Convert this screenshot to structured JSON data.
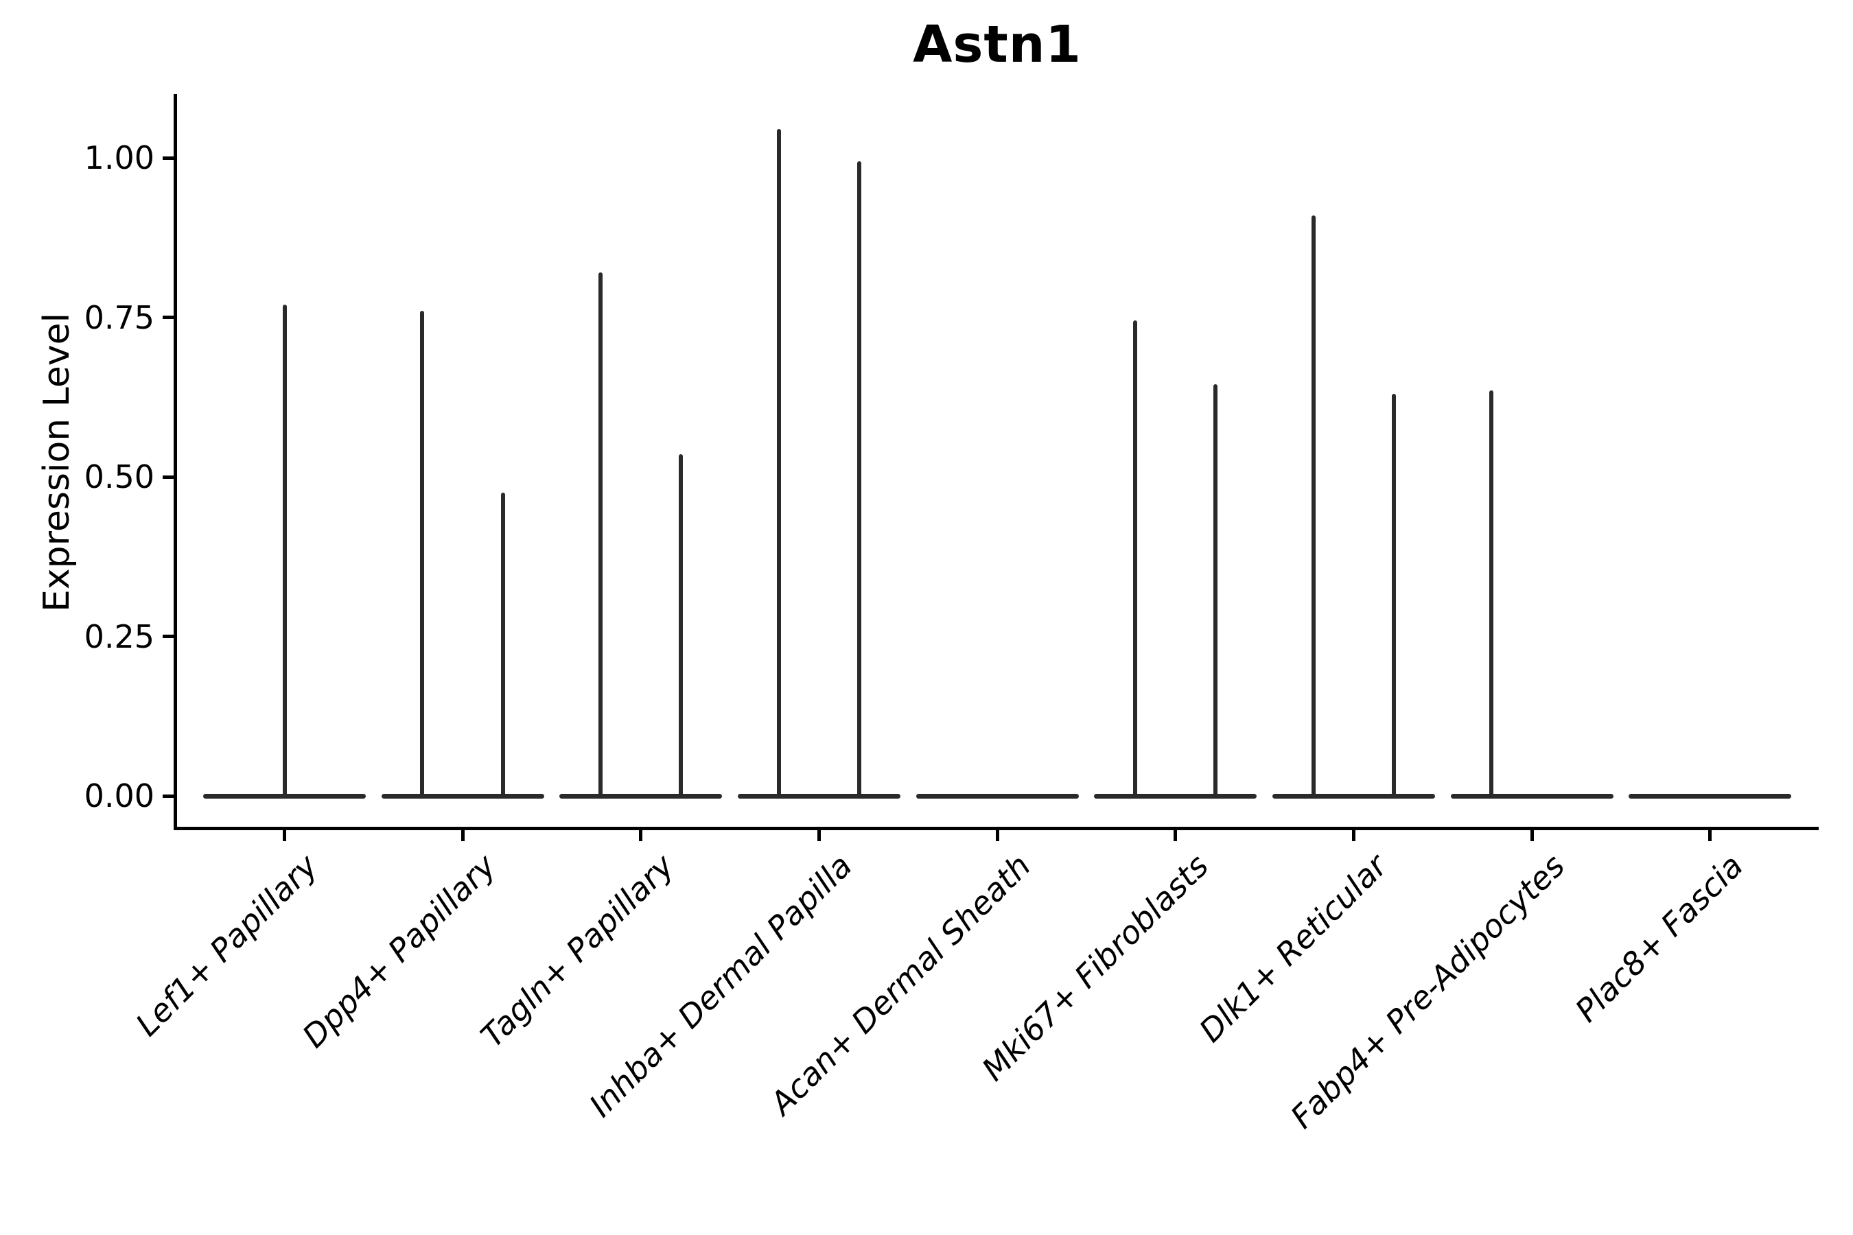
{
  "figure": {
    "background": "#ffffff",
    "text_color": "#000000",
    "line_color": "#2a2a2a"
  },
  "chart_data": {
    "type": "violin",
    "title": "Astn1",
    "xlabel": "",
    "ylabel": "Expression Level",
    "grid": false,
    "legend": "none",
    "ylim": [
      -0.054,
      1.1
    ],
    "yticks": [
      0.0,
      0.25,
      0.5,
      0.75,
      1.0
    ],
    "ytick_labels": [
      "0.00",
      "0.25",
      "0.50",
      "0.75",
      "1.00"
    ],
    "xtick_rotation_deg": 45,
    "categories": [
      "Lef1+ Papillary",
      "Dpp4+ Papillary",
      "Tagln+ Papillary",
      "Inhba+ Dermal Papilla",
      "Acan+ Dermal Sheath",
      "Mki67+ Fibroblasts",
      "Dlk1+ Reticular",
      "Fabp4+ Pre-Adipocytes",
      "Plac8+ Fascia"
    ],
    "violins": [
      {
        "category": "Lef1+ Papillary",
        "base_at_zero": true,
        "spikes": [
          {
            "offset": 0.0,
            "max": 0.77
          }
        ]
      },
      {
        "category": "Dpp4+ Papillary",
        "base_at_zero": true,
        "spikes": [
          {
            "offset": -0.226,
            "max": 0.76
          },
          {
            "offset": 0.226,
            "max": 0.475
          }
        ]
      },
      {
        "category": "Tagln+ Papillary",
        "base_at_zero": true,
        "spikes": [
          {
            "offset": -0.226,
            "max": 0.82
          },
          {
            "offset": 0.226,
            "max": 0.535
          }
        ]
      },
      {
        "category": "Inhba+ Dermal Papilla",
        "base_at_zero": true,
        "spikes": [
          {
            "offset": -0.226,
            "max": 1.045
          },
          {
            "offset": 0.226,
            "max": 0.995
          }
        ]
      },
      {
        "category": "Acan+ Dermal Sheath",
        "base_at_zero": true,
        "spikes": []
      },
      {
        "category": "Mki67+ Fibroblasts",
        "base_at_zero": true,
        "spikes": [
          {
            "offset": -0.226,
            "max": 0.745
          },
          {
            "offset": 0.226,
            "max": 0.645
          }
        ]
      },
      {
        "category": "Dlk1+ Reticular",
        "base_at_zero": true,
        "spikes": [
          {
            "offset": -0.226,
            "max": 0.91
          },
          {
            "offset": 0.226,
            "max": 0.63
          }
        ]
      },
      {
        "category": "Fabp4+ Pre-Adipocytes",
        "base_at_zero": true,
        "spikes": [
          {
            "offset": -0.226,
            "max": 0.635
          }
        ]
      },
      {
        "category": "Plac8+ Fascia",
        "base_at_zero": true,
        "spikes": []
      }
    ]
  }
}
